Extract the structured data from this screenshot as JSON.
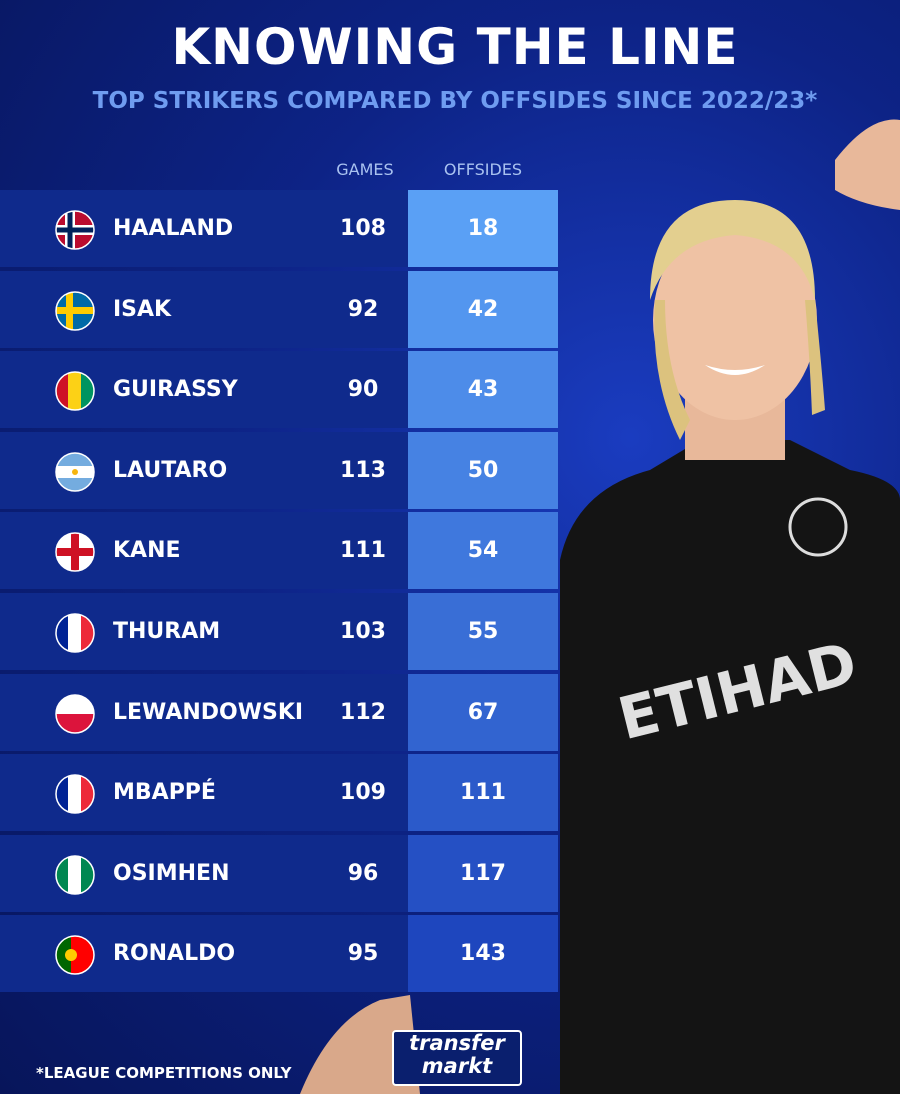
{
  "header": {
    "title": "KNOWING THE LINE",
    "subtitle": "TOP STRIKERS COMPARED BY OFFSIDES SINCE 2022/23*"
  },
  "table": {
    "columns": [
      "GAMES",
      "OFFSIDES"
    ],
    "rows": [
      [
        "HAALAND",
        108,
        18
      ],
      [
        "ISAK",
        92,
        42
      ],
      [
        "GUIRASSY",
        90,
        43
      ],
      [
        "LAUTARO",
        113,
        50
      ],
      [
        "KANE",
        111,
        54
      ],
      [
        "THURAM",
        103,
        55
      ],
      [
        "LEWANDOWSKI",
        112,
        67
      ],
      [
        "MBAPPÉ",
        109,
        111
      ],
      [
        "OSIMHEN",
        96,
        117
      ],
      [
        "RONALDO",
        95,
        143
      ]
    ]
  },
  "footnote": "*LEAGUE COMPETITIONS ONLY",
  "logo": [
    "transfer",
    "markt"
  ]
}
